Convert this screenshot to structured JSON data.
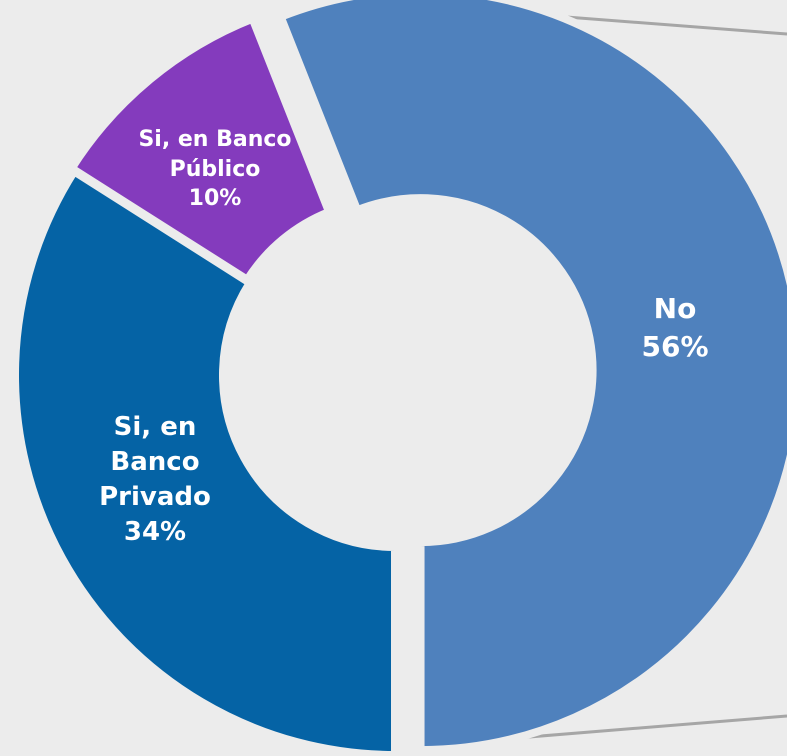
{
  "chart_data": {
    "type": "donut",
    "categories": [
      "No",
      "Si, en Banco Privado",
      "Si, en Banco Público"
    ],
    "values": [
      56,
      34,
      10
    ],
    "value_labels": [
      "56%",
      "34%",
      "10%"
    ],
    "colors": [
      "#4f81bd",
      "#0563a5",
      "#843bbd"
    ]
  }
}
